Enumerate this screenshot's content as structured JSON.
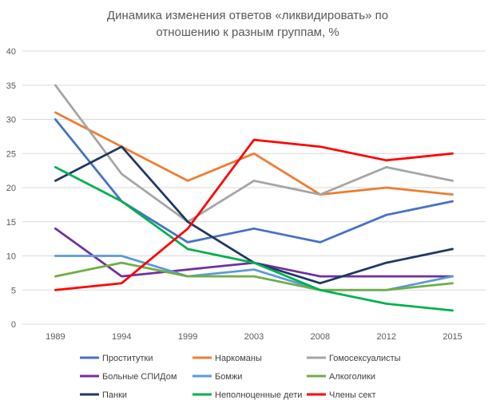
{
  "chart_data": {
    "type": "line",
    "title_lines": [
      "Динамика изменения ответов «ликвидировать» по",
      "отношению к разным группам, %"
    ],
    "x": [
      "1989",
      "1994",
      "1999",
      "2003",
      "2008",
      "2012",
      "2015"
    ],
    "ylim": [
      0,
      40
    ],
    "yticks": [
      0,
      5,
      10,
      15,
      20,
      25,
      30,
      35,
      40
    ],
    "grid": true,
    "legend_position": "bottom",
    "series": [
      {
        "name": "Проститутки",
        "color": "#4472c4",
        "values": [
          30,
          18,
          12,
          14,
          12,
          16,
          18
        ]
      },
      {
        "name": "Наркоманы",
        "color": "#ed7d31",
        "values": [
          31,
          26,
          21,
          25,
          19,
          20,
          19
        ]
      },
      {
        "name": "Гомосексуалисты",
        "color": "#a5a5a5",
        "values": [
          35,
          22,
          15,
          21,
          19,
          23,
          21
        ]
      },
      {
        "name": "Больные СПИДом",
        "color": "#7030a0",
        "values": [
          14,
          7,
          8,
          9,
          7,
          7,
          7
        ]
      },
      {
        "name": "Бомжи",
        "color": "#5b9bd5",
        "values": [
          10,
          10,
          7,
          8,
          5,
          5,
          7
        ]
      },
      {
        "name": "Алкоголики",
        "color": "#70ad47",
        "values": [
          7,
          9,
          7,
          7,
          5,
          5,
          6
        ]
      },
      {
        "name": "Панки",
        "color": "#203864",
        "values": [
          21,
          26,
          15,
          9,
          6,
          9,
          11
        ]
      },
      {
        "name": "Неполноценные дети",
        "color": "#00b050",
        "values": [
          23,
          18,
          11,
          9,
          5,
          3,
          2
        ]
      },
      {
        "name": "Члены сект",
        "color": "#ff0000",
        "values": [
          5,
          6,
          14,
          27,
          26,
          24,
          25
        ]
      }
    ]
  }
}
